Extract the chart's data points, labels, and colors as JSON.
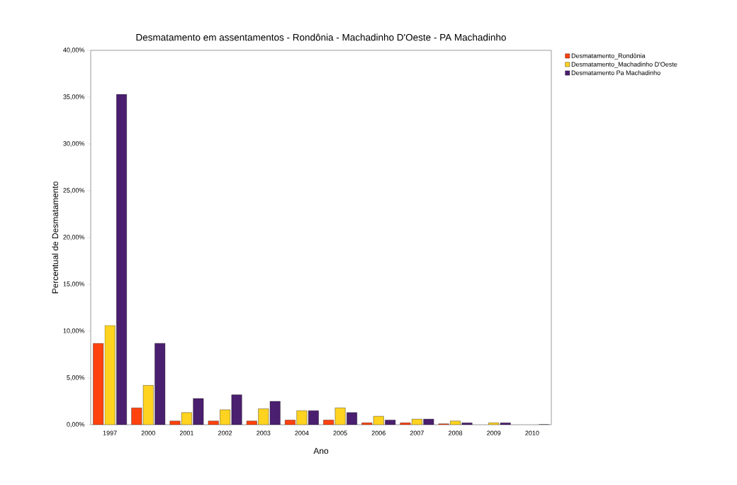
{
  "chart_data": {
    "type": "bar",
    "title": "Desmatamento em assentamentos - Rondônia - Machadinho D'Oeste - PA Machadinho",
    "xlabel": "Ano",
    "ylabel": "Percentual de Desmatamento",
    "categories": [
      "1997",
      "2000",
      "2001",
      "2002",
      "2003",
      "2004",
      "2005",
      "2006",
      "2007",
      "2008",
      "2009",
      "2010"
    ],
    "series": [
      {
        "name": "Desmatamento_Rondônia",
        "color": "#ff420e",
        "values": [
          8.7,
          1.8,
          0.4,
          0.4,
          0.4,
          0.5,
          0.5,
          0.2,
          0.2,
          0.1,
          null,
          null
        ]
      },
      {
        "name": "Desmatamento_Machadinho D'Oeste",
        "color": "#ffd320",
        "values": [
          10.6,
          4.2,
          1.3,
          1.6,
          1.7,
          1.5,
          1.8,
          0.9,
          0.6,
          0.4,
          0.2,
          null
        ]
      },
      {
        "name": "Desmatamento Pa Machadinho",
        "color": "#4b1f6f",
        "values": [
          35.3,
          8.7,
          2.8,
          3.2,
          2.5,
          1.5,
          1.3,
          0.5,
          0.6,
          0.2,
          0.2,
          0.01
        ]
      }
    ],
    "ylim": [
      0,
      40
    ],
    "yticks": [
      {
        "value": 0,
        "label": "0,00%"
      },
      {
        "value": 5,
        "label": "5,00%"
      },
      {
        "value": 10,
        "label": "10,00%"
      },
      {
        "value": 15,
        "label": "15,00%"
      },
      {
        "value": 20,
        "label": "20,00%"
      },
      {
        "value": 25,
        "label": "25,00%"
      },
      {
        "value": 30,
        "label": "30,00%"
      },
      {
        "value": 35,
        "label": "35,00%"
      },
      {
        "value": 40,
        "label": "40,00%"
      }
    ],
    "legend": "top right",
    "grid": false
  }
}
